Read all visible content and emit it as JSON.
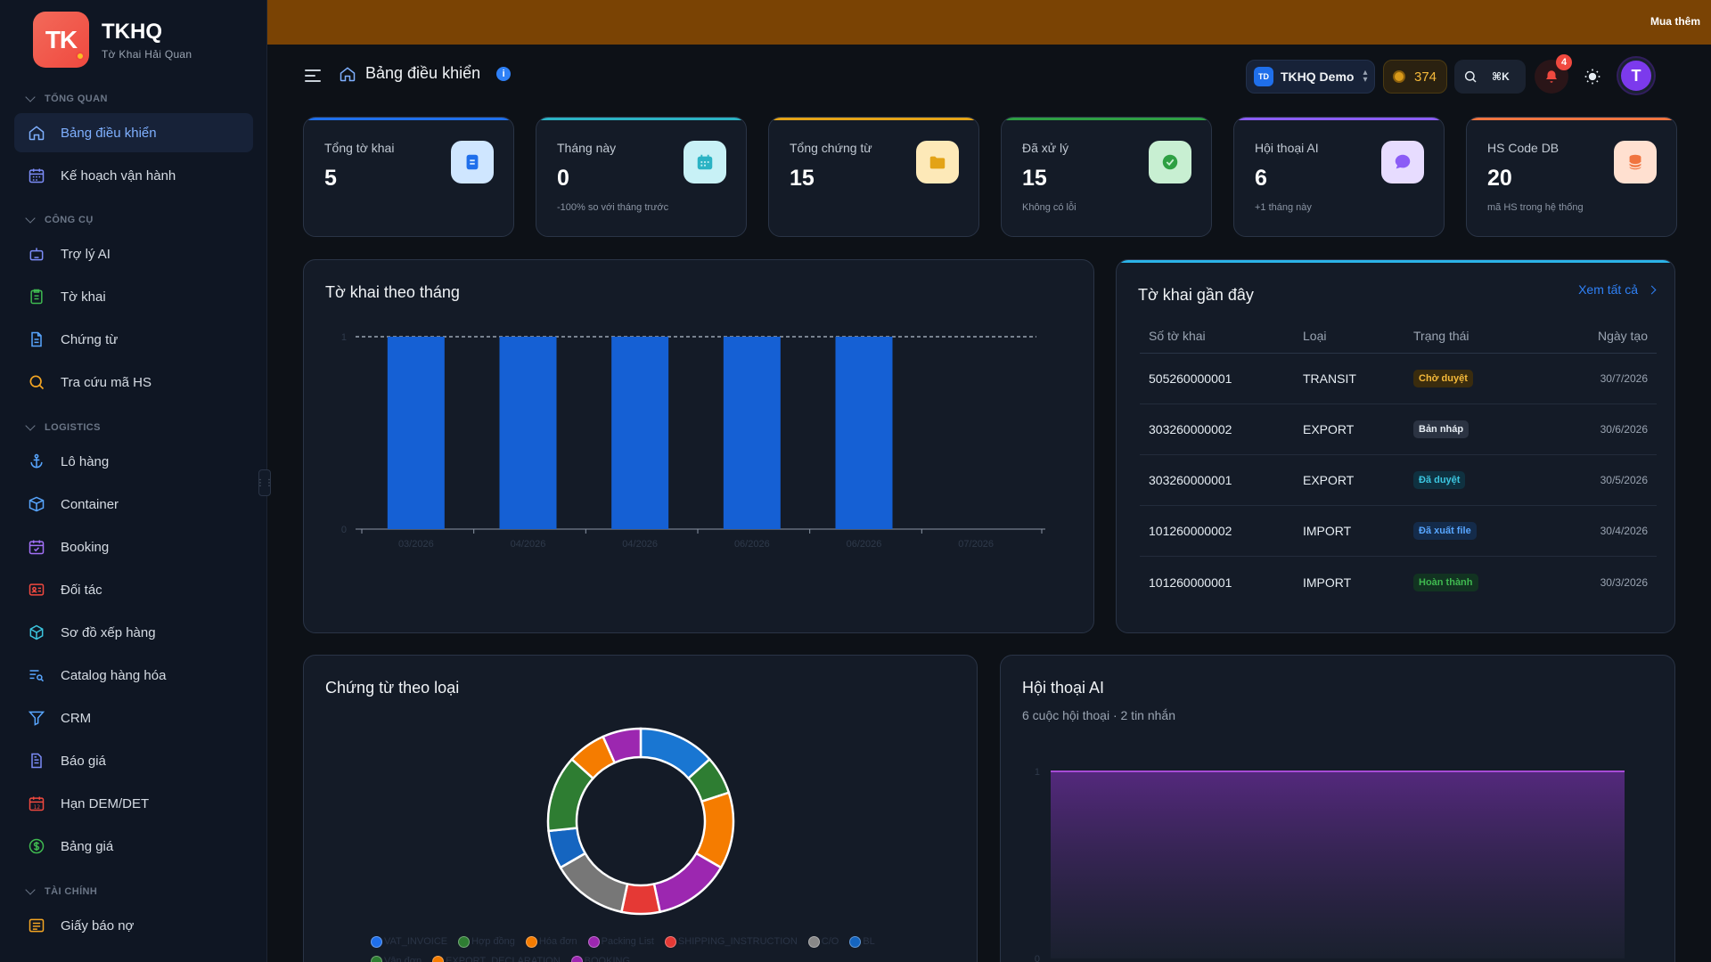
{
  "brand": {
    "logo_text": "TK",
    "title": "TKHQ",
    "subtitle": "Tờ Khai Hải Quan"
  },
  "promo": {
    "link": "Mua thêm"
  },
  "header": {
    "breadcrumb": "Bảng điều khiển",
    "info": "i",
    "org_badge": "TD",
    "org_name": "TKHQ Demo",
    "coins": "374",
    "shortcut": "⌘K",
    "notifications": "4",
    "avatar": "T"
  },
  "sidebar": {
    "sections": [
      {
        "label": "TỔNG QUAN"
      },
      {
        "label": "CÔNG CỤ"
      },
      {
        "label": "LOGISTICS"
      },
      {
        "label": "TÀI CHÍNH"
      }
    ],
    "items": [
      {
        "label": "Bảng điều khiển",
        "icon": "home-icon"
      },
      {
        "label": "Kế hoạch vận hành",
        "icon": "calendar-grid-icon"
      },
      {
        "label": "Trợ lý AI",
        "icon": "robot-icon"
      },
      {
        "label": "Tờ khai",
        "icon": "clipboard-icon"
      },
      {
        "label": "Chứng từ",
        "icon": "document-icon"
      },
      {
        "label": "Tra cứu mã HS",
        "icon": "search-icon"
      },
      {
        "label": "Lô hàng",
        "icon": "anchor-icon"
      },
      {
        "label": "Container",
        "icon": "box-icon"
      },
      {
        "label": "Booking",
        "icon": "calendar-check-icon"
      },
      {
        "label": "Đối tác",
        "icon": "contact-card-icon"
      },
      {
        "label": "Sơ đồ xếp hàng",
        "icon": "cube-icon"
      },
      {
        "label": "Catalog hàng hóa",
        "icon": "list-search-icon"
      },
      {
        "label": "CRM",
        "icon": "funnel-icon"
      },
      {
        "label": "Báo giá",
        "icon": "quote-doc-icon"
      },
      {
        "label": "Hạn DEM/DET",
        "icon": "calendar-12-icon"
      },
      {
        "label": "Bảng giá",
        "icon": "dollar-icon"
      },
      {
        "label": "Giấy báo nợ",
        "icon": "receipt-icon"
      }
    ]
  },
  "stats": [
    {
      "label": "Tổng tờ khai",
      "value": "5",
      "sub": "",
      "icon": "document-icon",
      "color": "#1f6feb"
    },
    {
      "label": "Tháng này",
      "value": "0",
      "sub": "-100% so với tháng trước",
      "icon": "calendar-icon",
      "color": "#2bb3c4"
    },
    {
      "label": "Tổng chứng từ",
      "value": "15",
      "sub": "",
      "icon": "folder-icon",
      "color": "#e3a317"
    },
    {
      "label": "Đã xử lý",
      "value": "15",
      "sub": "Không có lỗi",
      "icon": "check-icon",
      "color": "#2ea043"
    },
    {
      "label": "Hội thoại AI",
      "value": "6",
      "sub": "+1 tháng này",
      "icon": "chat-icon",
      "color": "#8b5cf6"
    },
    {
      "label": "HS Code DB",
      "value": "20",
      "sub": "mã HS trong hệ thống",
      "icon": "database-icon",
      "color": "#f0743f"
    }
  ],
  "monthly_panel": {
    "title": "Tờ khai theo tháng"
  },
  "recent": {
    "title": "Tờ khai gần đây",
    "see_all": "Xem tất cả",
    "columns": [
      "Số tờ khai",
      "Loại",
      "Trạng thái",
      "Ngày tạo"
    ],
    "rows": [
      {
        "number": "505260000001",
        "type": "TRANSIT",
        "status": "Chờ duyệt",
        "status_color": "#f5b93a",
        "status_bg": "#3a2c0e",
        "date": "30/7/2026"
      },
      {
        "number": "303260000002",
        "type": "EXPORT",
        "status": "Bản nháp",
        "status_color": "#e6edf3",
        "status_bg": "#2b3342",
        "date": "30/6/2026"
      },
      {
        "number": "303260000001",
        "type": "EXPORT",
        "status": "Đã duyệt",
        "status_color": "#3cc6e0",
        "status_bg": "#0f3140",
        "date": "30/5/2026"
      },
      {
        "number": "101260000002",
        "type": "IMPORT",
        "status": "Đã xuất file",
        "status_color": "#58a6ff",
        "status_bg": "#142b4a",
        "date": "30/4/2026"
      },
      {
        "number": "101260000001",
        "type": "IMPORT",
        "status": "Hoàn thành",
        "status_color": "#3fb950",
        "status_bg": "#123321",
        "date": "30/3/2026"
      }
    ]
  },
  "docs_panel": {
    "title": "Chứng từ theo loại"
  },
  "ai_panel": {
    "title": "Hội thoại AI",
    "subtitle": "6 cuộc hội thoại · 2 tin nhắn"
  },
  "chart_data": [
    {
      "type": "bar",
      "title": "Tờ khai theo tháng",
      "categories": [
        "03/2026",
        "04/2026",
        "04/2026",
        "06/2026",
        "06/2026",
        "07/2026"
      ],
      "values": [
        1,
        1,
        1,
        1,
        1,
        0
      ],
      "ylim": [
        0,
        1
      ],
      "yticks": [
        "0",
        "1"
      ],
      "bar_color": "#1560d4",
      "reference_line": 1
    },
    {
      "type": "pie",
      "title": "Chứng từ theo loại",
      "donut": true,
      "legend": [
        "VAT_INVOICE",
        "Hợp đồng",
        "Hóa đơn",
        "Packing List",
        "SHIPPING_INSTRUCTION",
        "C/O",
        "BL",
        "Vận đơn",
        "EXPORT_DECLARATION",
        "BOOKING"
      ],
      "legend_colors": [
        "#1f6feb",
        "#2e7d32",
        "#f57c00",
        "#9c27b0",
        "#e53935",
        "#888888",
        "#1565c0",
        "#2e7d32",
        "#f57c00",
        "#9c27b0"
      ],
      "slices": [
        {
          "value": 2,
          "color": "#1976d2"
        },
        {
          "value": 1,
          "color": "#2e7d32"
        },
        {
          "value": 2,
          "color": "#f57c00"
        },
        {
          "value": 2,
          "color": "#9c27b0"
        },
        {
          "value": 1,
          "color": "#e53935"
        },
        {
          "value": 2,
          "color": "#777777"
        },
        {
          "value": 1,
          "color": "#1565c0"
        },
        {
          "value": 2,
          "color": "#2e7d32"
        },
        {
          "value": 1,
          "color": "#f57c00"
        },
        {
          "value": 1,
          "color": "#9c27b0"
        }
      ]
    },
    {
      "type": "area",
      "title": "Hội thoại AI",
      "ylim": [
        0,
        1
      ],
      "yticks": [
        "0",
        "1"
      ],
      "values": [
        1,
        1
      ],
      "line_color": "#a64bd6"
    }
  ]
}
